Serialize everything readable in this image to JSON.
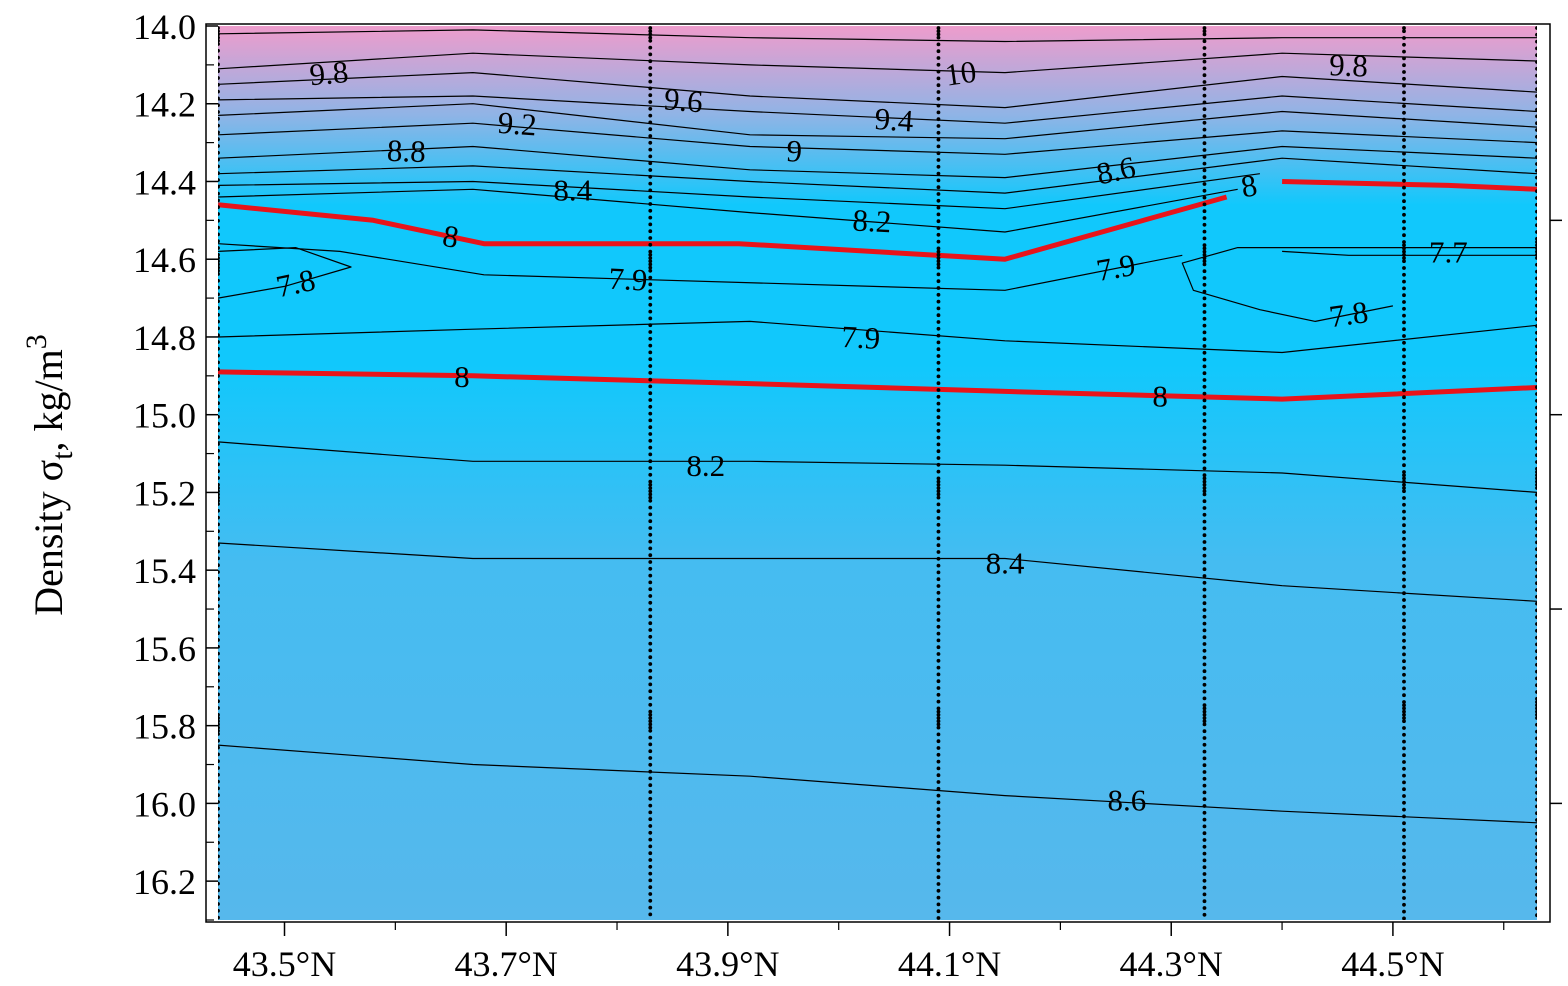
{
  "chart_data": {
    "type": "contour",
    "ylabel": "Density σt, kg/m3",
    "ylabel_parts": {
      "main": "Density σ",
      "sub": "t",
      "unit": ", kg/m",
      "sup": "3"
    },
    "xlabel": "",
    "xlim": [
      43.44,
      44.63
    ],
    "ylim": [
      14.0,
      16.3
    ],
    "y_inverted": true,
    "x_ticks": [
      {
        "value": 43.5,
        "label": "43.5°N"
      },
      {
        "value": 43.7,
        "label": "43.7°N"
      },
      {
        "value": 43.9,
        "label": "43.9°N"
      },
      {
        "value": 44.1,
        "label": "44.1°N"
      },
      {
        "value": 44.3,
        "label": "44.3°N"
      },
      {
        "value": 44.5,
        "label": "44.5°N"
      }
    ],
    "y_ticks": [
      {
        "value": 14.0,
        "label": "14.0"
      },
      {
        "value": 14.2,
        "label": "14.2"
      },
      {
        "value": 14.4,
        "label": "14.4"
      },
      {
        "value": 14.6,
        "label": "14.6"
      },
      {
        "value": 14.8,
        "label": "14.8"
      },
      {
        "value": 15.0,
        "label": "15.0"
      },
      {
        "value": 15.2,
        "label": "15.2"
      },
      {
        "value": 15.4,
        "label": "15.4"
      },
      {
        "value": 15.6,
        "label": "15.6"
      },
      {
        "value": 15.8,
        "label": "15.8"
      },
      {
        "value": 16.0,
        "label": "16.0"
      },
      {
        "value": 16.2,
        "label": "16.2"
      }
    ],
    "stations_lat": [
      43.44,
      43.83,
      44.09,
      44.33,
      44.51,
      44.63
    ],
    "colors": {
      "top": "#ee9ccc",
      "upper": "#8fb4e6",
      "core": "#11c8fc",
      "lower": "#45bcf1",
      "bottom": "#56b8ec",
      "highlight": "#e8141a",
      "line": "#000000",
      "station": "#000000"
    },
    "contours": [
      {
        "level": "10",
        "highlight": false,
        "points": [
          [
            43.44,
            14.02
          ],
          [
            43.67,
            14.01
          ],
          [
            43.92,
            14.03
          ],
          [
            44.15,
            14.04
          ],
          [
            44.4,
            14.03
          ],
          [
            44.63,
            14.03
          ]
        ],
        "labels": [
          {
            "x": 44.11,
            "y": 14.12,
            "rot": -8,
            "text": "10"
          }
        ]
      },
      {
        "level": "9.8",
        "highlight": false,
        "points": [
          [
            43.44,
            14.11
          ],
          [
            43.67,
            14.07
          ],
          [
            43.92,
            14.1
          ],
          [
            44.15,
            14.12
          ],
          [
            44.4,
            14.07
          ],
          [
            44.63,
            14.09
          ]
        ],
        "labels": [
          {
            "x": 43.54,
            "y": 14.12,
            "rot": -5,
            "text": "9.8"
          },
          {
            "x": 44.46,
            "y": 14.1,
            "rot": 2,
            "text": "9.8"
          }
        ]
      },
      {
        "level": "9.6",
        "highlight": false,
        "points": [
          [
            43.44,
            14.15
          ],
          [
            43.67,
            14.12
          ],
          [
            43.92,
            14.18
          ],
          [
            44.15,
            14.21
          ],
          [
            44.4,
            14.13
          ],
          [
            44.63,
            14.17
          ]
        ],
        "labels": [
          {
            "x": 43.86,
            "y": 14.19,
            "rot": 5,
            "text": "9.6"
          }
        ]
      },
      {
        "level": "9.4",
        "highlight": false,
        "points": [
          [
            43.44,
            14.19
          ],
          [
            43.67,
            14.18
          ],
          [
            43.92,
            14.22
          ],
          [
            44.15,
            14.25
          ],
          [
            44.4,
            14.18
          ],
          [
            44.63,
            14.22
          ]
        ],
        "labels": [
          {
            "x": 44.05,
            "y": 14.24,
            "rot": 4,
            "text": "9.4"
          }
        ]
      },
      {
        "level": "9.2",
        "highlight": false,
        "points": [
          [
            43.44,
            14.23
          ],
          [
            43.67,
            14.2
          ],
          [
            43.92,
            14.28
          ],
          [
            44.15,
            14.29
          ],
          [
            44.4,
            14.22
          ],
          [
            44.63,
            14.26
          ]
        ],
        "labels": [
          {
            "x": 43.71,
            "y": 14.25,
            "rot": 4,
            "text": "9.2"
          }
        ]
      },
      {
        "level": "9",
        "highlight": false,
        "points": [
          [
            43.44,
            14.28
          ],
          [
            43.67,
            14.25
          ],
          [
            43.92,
            14.31
          ],
          [
            44.15,
            14.33
          ],
          [
            44.4,
            14.27
          ],
          [
            44.63,
            14.3
          ]
        ],
        "labels": [
          {
            "x": 43.96,
            "y": 14.32,
            "rot": 3,
            "text": "9"
          }
        ]
      },
      {
        "level": "8.8",
        "highlight": false,
        "points": [
          [
            43.44,
            14.34
          ],
          [
            43.67,
            14.31
          ],
          [
            43.92,
            14.37
          ],
          [
            44.15,
            14.39
          ],
          [
            44.4,
            14.31
          ],
          [
            44.63,
            14.34
          ]
        ],
        "labels": [
          {
            "x": 43.61,
            "y": 14.32,
            "rot": 2,
            "text": "8.8"
          }
        ]
      },
      {
        "level": "8.6",
        "highlight": false,
        "points": [
          [
            43.44,
            14.38
          ],
          [
            43.67,
            14.36
          ],
          [
            43.92,
            14.4
          ],
          [
            44.15,
            14.43
          ],
          [
            44.4,
            14.34
          ],
          [
            44.63,
            14.38
          ]
        ],
        "labels": [
          {
            "x": 44.25,
            "y": 14.37,
            "rot": -12,
            "text": "8.6"
          }
        ]
      },
      {
        "level": "8.4",
        "highlight": false,
        "points": [
          [
            43.44,
            14.41
          ],
          [
            43.67,
            14.4
          ],
          [
            43.92,
            14.44
          ],
          [
            44.15,
            14.47
          ],
          [
            44.38,
            14.38
          ]
        ],
        "labels": [
          {
            "x": 43.76,
            "y": 14.42,
            "rot": 0,
            "text": "8.4"
          }
        ]
      },
      {
        "level": "8.2",
        "highlight": false,
        "points": [
          [
            43.44,
            14.44
          ],
          [
            43.67,
            14.42
          ],
          [
            43.92,
            14.48
          ],
          [
            44.15,
            14.53
          ],
          [
            44.36,
            14.42
          ]
        ],
        "labels": [
          {
            "x": 44.03,
            "y": 14.5,
            "rot": 3,
            "text": "8.2"
          }
        ]
      },
      {
        "level": "8",
        "highlight": true,
        "points": [
          [
            43.44,
            14.46
          ],
          [
            43.58,
            14.5
          ],
          [
            43.68,
            14.56
          ],
          [
            43.91,
            14.56
          ],
          [
            44.15,
            14.6
          ],
          [
            44.35,
            14.44
          ]
        ],
        "labels": [
          {
            "x": 43.65,
            "y": 14.54,
            "rot": 10,
            "text": "8"
          }
        ]
      },
      {
        "level": "8",
        "highlight": true,
        "points": [
          [
            44.4,
            14.4
          ],
          [
            44.55,
            14.41
          ],
          [
            44.63,
            14.42
          ]
        ],
        "labels": [
          {
            "x": 44.37,
            "y": 14.41,
            "rot": -10,
            "text": "8"
          }
        ]
      },
      {
        "level": "7.9",
        "highlight": false,
        "points": [
          [
            43.44,
            14.56
          ],
          [
            43.55,
            14.58
          ],
          [
            43.68,
            14.64
          ],
          [
            44.15,
            14.68
          ],
          [
            44.31,
            14.59
          ]
        ],
        "labels": [
          {
            "x": 43.81,
            "y": 14.65,
            "rot": 3,
            "text": "7.9"
          },
          {
            "x": 44.25,
            "y": 14.62,
            "rot": -10,
            "text": "7.9"
          }
        ]
      },
      {
        "level": "7.8",
        "highlight": false,
        "points": [
          [
            43.44,
            14.7
          ],
          [
            43.5,
            14.67
          ],
          [
            43.56,
            14.62
          ],
          [
            43.51,
            14.57
          ],
          [
            43.44,
            14.58
          ]
        ],
        "labels": [
          {
            "x": 43.51,
            "y": 14.66,
            "rot": -12,
            "text": "7.8"
          }
        ]
      },
      {
        "level": "7.8",
        "highlight": false,
        "points": [
          [
            44.5,
            14.72
          ],
          [
            44.43,
            14.76
          ],
          [
            44.38,
            14.73
          ],
          [
            44.32,
            14.68
          ],
          [
            44.31,
            14.61
          ],
          [
            44.36,
            14.57
          ],
          [
            44.63,
            14.57
          ]
        ],
        "labels": [
          {
            "x": 44.46,
            "y": 14.74,
            "rot": -8,
            "text": "7.8"
          }
        ]
      },
      {
        "level": "7.7",
        "highlight": false,
        "points": [
          [
            44.4,
            14.58
          ],
          [
            44.46,
            14.59
          ],
          [
            44.63,
            14.59
          ]
        ],
        "labels": [
          {
            "x": 44.55,
            "y": 14.58,
            "rot": 0,
            "text": "7.7"
          }
        ]
      },
      {
        "level": "7.9",
        "highlight": false,
        "points": [
          [
            43.44,
            14.8
          ],
          [
            43.67,
            14.78
          ],
          [
            43.92,
            14.76
          ],
          [
            44.15,
            14.81
          ],
          [
            44.4,
            14.84
          ],
          [
            44.63,
            14.77
          ]
        ],
        "labels": [
          {
            "x": 44.02,
            "y": 14.8,
            "rot": 3,
            "text": "7.9"
          }
        ]
      },
      {
        "level": "8",
        "highlight": true,
        "points": [
          [
            43.44,
            14.89
          ],
          [
            43.67,
            14.9
          ],
          [
            43.92,
            14.92
          ],
          [
            44.15,
            14.94
          ],
          [
            44.4,
            14.96
          ],
          [
            44.63,
            14.93
          ]
        ],
        "labels": [
          {
            "x": 43.66,
            "y": 14.9,
            "rot": 0,
            "text": "8"
          },
          {
            "x": 44.29,
            "y": 14.95,
            "rot": 0,
            "text": "8"
          }
        ]
      },
      {
        "level": "8.2",
        "highlight": false,
        "points": [
          [
            43.44,
            15.07
          ],
          [
            43.67,
            15.12
          ],
          [
            43.92,
            15.12
          ],
          [
            44.15,
            15.13
          ],
          [
            44.4,
            15.15
          ],
          [
            44.63,
            15.2
          ]
        ],
        "labels": [
          {
            "x": 43.88,
            "y": 15.13,
            "rot": 0,
            "text": "8.2"
          }
        ]
      },
      {
        "level": "8.4",
        "highlight": false,
        "points": [
          [
            43.44,
            15.33
          ],
          [
            43.67,
            15.37
          ],
          [
            43.92,
            15.37
          ],
          [
            44.15,
            15.37
          ],
          [
            44.4,
            15.44
          ],
          [
            44.63,
            15.48
          ]
        ],
        "labels": [
          {
            "x": 44.15,
            "y": 15.38,
            "rot": 0,
            "text": "8.4"
          }
        ]
      },
      {
        "level": "8.6",
        "highlight": false,
        "points": [
          [
            43.44,
            15.85
          ],
          [
            43.67,
            15.9
          ],
          [
            43.92,
            15.93
          ],
          [
            44.15,
            15.98
          ],
          [
            44.4,
            16.02
          ],
          [
            44.63,
            16.05
          ]
        ],
        "labels": [
          {
            "x": 44.26,
            "y": 15.99,
            "rot": 0,
            "text": "8.6"
          }
        ]
      }
    ]
  }
}
